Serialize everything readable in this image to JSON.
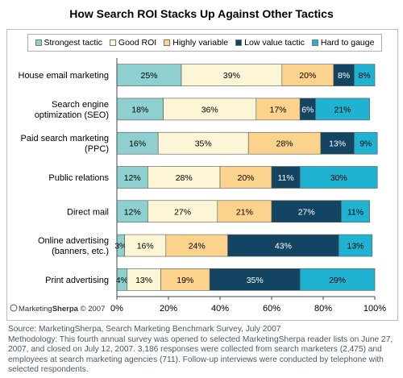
{
  "chart_data": {
    "type": "bar",
    "orientation": "horizontal",
    "stacked": true,
    "title": "How Search ROI Stacks Up Against Other Tactics",
    "categories": [
      [
        "House email marketing"
      ],
      [
        "Search engine",
        "optimization (SEO)"
      ],
      [
        "Paid search marketing",
        "(PPC)"
      ],
      [
        "Public relations"
      ],
      [
        "Direct mail"
      ],
      [
        "Online advertising",
        "(banners, etc.)"
      ],
      [
        "Print advertising"
      ]
    ],
    "series": [
      {
        "name": "Strongest tactic",
        "color": "#8ecfcf",
        "values": [
          25,
          18,
          16,
          12,
          12,
          3,
          4
        ]
      },
      {
        "name": "Good ROI",
        "color": "#fdf6d6",
        "values": [
          39,
          36,
          35,
          28,
          27,
          16,
          13
        ]
      },
      {
        "name": "Highly variable",
        "color": "#fbd38c",
        "values": [
          20,
          17,
          28,
          20,
          21,
          24,
          19
        ]
      },
      {
        "name": "Low value tactic",
        "color": "#134563",
        "values": [
          8,
          6,
          13,
          11,
          27,
          43,
          35
        ]
      },
      {
        "name": "Hard to gauge",
        "color": "#1fb3d1",
        "values": [
          8,
          21,
          9,
          30,
          11,
          13,
          29
        ]
      }
    ],
    "xlim": [
      0,
      100
    ],
    "x_ticks": [
      "0%",
      "20%",
      "40%",
      "60%",
      "80%",
      "100%"
    ],
    "grid": false,
    "legend_position": "top"
  },
  "logo": {
    "prefix": "Marketing",
    "brand": "Sherpa",
    "suffix": " © 2007"
  },
  "source": {
    "line1": "Source: MarketingSherpa, Search Marketing Benchmark Survey, July 2007",
    "line2": "Methodology: This fourth annual survey was opened to selected MarketingSherpa reader lists on June 27, 2007, and closed on July 12, 2007. 3,186 responses were collected from search marketers (2,475) and employees at search marketing agencies (711). Follow-up interviews were conducted by telephone with selected respondents."
  }
}
